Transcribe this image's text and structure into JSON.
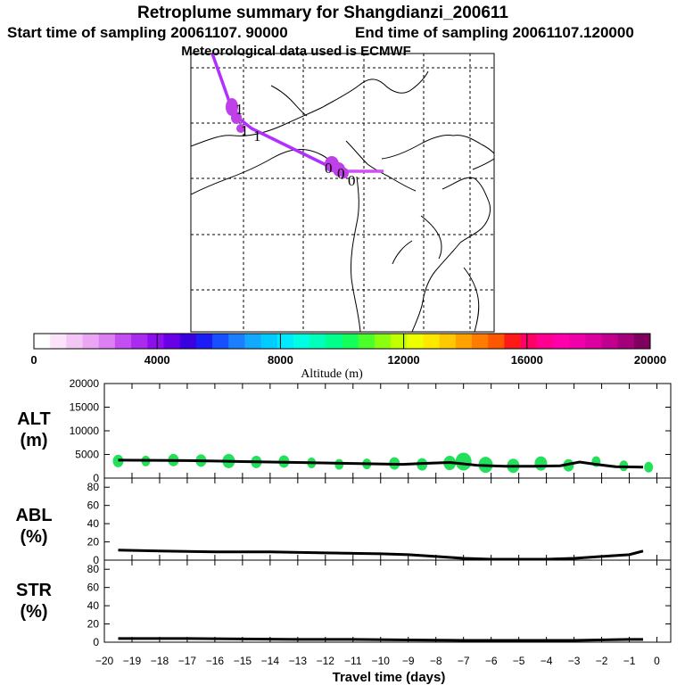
{
  "chart_data": [
    {
      "type": "map",
      "title": "Retroplume summary for Shangdianzi_200611",
      "subtitle_start": "Start time of sampling 20061107. 90000",
      "subtitle_end": "End time of sampling 20061107.120000",
      "subtitle_met": "Meteorological data used is ECMWF",
      "path_color": "#b030ff",
      "path_end_color": "#d050f0",
      "cluster_color": "#c040e8",
      "cluster_labels": [
        {
          "text": "1",
          "cluster": "west"
        },
        {
          "text": "1",
          "cluster": "west"
        },
        {
          "text": "1",
          "cluster": "west"
        },
        {
          "text": "0",
          "cluster": "east"
        },
        {
          "text": "0",
          "cluster": "east"
        },
        {
          "text": "0",
          "cluster": "east"
        }
      ]
    },
    {
      "type": "colorbar",
      "xlabel": "Altitude (m)",
      "range": [
        0,
        20000
      ],
      "tick_values": [
        0,
        4000,
        8000,
        12000,
        16000,
        20000
      ],
      "tick_labels": [
        "0",
        "4000",
        "8000",
        "12000",
        "16000",
        "20000"
      ],
      "colors": [
        "#ffffff",
        "#fbe3fb",
        "#f4c6f6",
        "#eaa6f3",
        "#dc7ff2",
        "#c44ef2",
        "#aa2aef",
        "#8f0ef0",
        "#6a00e8",
        "#3a00e0",
        "#1d1cf4",
        "#1650ff",
        "#1b7fff",
        "#11aaff",
        "#00ccff",
        "#00ebff",
        "#00ffe2",
        "#00ffb8",
        "#00ff8d",
        "#14ff5c",
        "#4cff2b",
        "#8aff10",
        "#c2ff00",
        "#eeff00",
        "#ffe800",
        "#ffc800",
        "#ffa200",
        "#ff7c00",
        "#ff5600",
        "#ff1a1a",
        "#ff0066",
        "#ff0090",
        "#ff00aa",
        "#f000a8",
        "#dc00a0",
        "#c2008e",
        "#a4007c",
        "#80005f"
      ]
    },
    {
      "type": "scatter+line",
      "panel_label": "ALT",
      "panel_unit": "(m)",
      "ylim": [
        0,
        20000
      ],
      "y_ticks": [
        0,
        5000,
        10000,
        15000,
        20000
      ],
      "y_tick_labels": [
        "0",
        "5000",
        "10000",
        "15000",
        "20000"
      ],
      "marker_color": "#22e05a",
      "line_color": "#000000",
      "line_x": [
        -19.5,
        -17,
        -15,
        -13,
        -11,
        -9.2,
        -8.5,
        -7.5,
        -6.5,
        -5.5,
        -4.5,
        -3.5,
        -2.8,
        -2.2,
        -1.5,
        -0.5
      ],
      "line_y": [
        3800,
        3700,
        3500,
        3300,
        3100,
        2900,
        3100,
        3300,
        2700,
        2500,
        2500,
        2600,
        3400,
        2900,
        2400,
        2300
      ],
      "marker_x": [
        -19.5,
        -18.5,
        -17.5,
        -16.5,
        -15.5,
        -14.5,
        -13.5,
        -12.5,
        -11.5,
        -10.5,
        -9.5,
        -8.5,
        -7.5,
        -7.0,
        -6.2,
        -5.2,
        -4.2,
        -3.2,
        -2.2,
        -1.2,
        -0.3
      ],
      "marker_y": [
        3600,
        3600,
        3800,
        3700,
        3600,
        3400,
        3500,
        3200,
        2900,
        3000,
        3100,
        2900,
        3200,
        3500,
        2800,
        2600,
        3100,
        2700,
        3500,
        2600,
        2300
      ],
      "marker_size": [
        6,
        5,
        6,
        6,
        7,
        6,
        6,
        5,
        5,
        5,
        6,
        6,
        7,
        9,
        8,
        7,
        7,
        6,
        5,
        5,
        5
      ]
    },
    {
      "type": "line",
      "panel_label": "ABL",
      "panel_unit": "(%)",
      "ylim": [
        0,
        90
      ],
      "y_ticks": [
        0,
        20,
        40,
        60,
        80
      ],
      "y_tick_labels": [
        "0",
        "20",
        "40",
        "60",
        "80"
      ],
      "x": [
        -19.5,
        -18,
        -16,
        -14,
        -12,
        -10,
        -9,
        -8,
        -7,
        -6,
        -5,
        -4,
        -3,
        -2,
        -1,
        -0.5
      ],
      "y": [
        11,
        10,
        9,
        9,
        8,
        7,
        6,
        4,
        2,
        1,
        1,
        1,
        2,
        4,
        6,
        10
      ]
    },
    {
      "type": "line",
      "panel_label": "STR",
      "panel_unit": "(%)",
      "ylim": [
        0,
        90
      ],
      "y_ticks": [
        0,
        20,
        40,
        60,
        80
      ],
      "y_tick_labels": [
        "0",
        "20",
        "40",
        "60",
        "80"
      ],
      "xlabel": "Travel time (days)",
      "xlim": [
        -20,
        0.5
      ],
      "x_ticks": [
        -20,
        -19,
        -18,
        -17,
        -16,
        -15,
        -14,
        -13,
        -12,
        -11,
        -10,
        -9,
        -8,
        -7,
        -6,
        -5,
        -4,
        -3,
        -2,
        -1,
        0
      ],
      "x_tick_labels": [
        "−20",
        "−19",
        "−18",
        "−17",
        "−16",
        "−15",
        "−14",
        "−13",
        "−12",
        "−11",
        "−10",
        "−9",
        "−8",
        "−7",
        "−6",
        "−5",
        "−4",
        "−3",
        "−2",
        "−1",
        "0"
      ],
      "x": [
        -19.5,
        -17,
        -15,
        -13,
        -11,
        -9,
        -7,
        -5,
        -3,
        -1,
        -0.5
      ],
      "y": [
        4,
        4,
        3.5,
        3,
        3,
        2.5,
        2,
        2,
        2,
        3,
        3
      ]
    }
  ]
}
